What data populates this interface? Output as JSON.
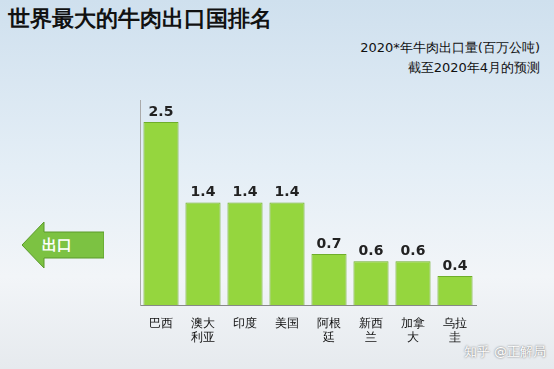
{
  "chart_data": {
    "type": "bar",
    "title": "世界最大的牛肉出口国排名",
    "subtitle": [
      "2020*年牛肉出口量(百万公吨)",
      "截至2020年4月的预测"
    ],
    "annotations": [
      "出口",
      "知乎 @正解局"
    ],
    "categories": [
      "巴西",
      "澳大利亚",
      "印度",
      "美国",
      "阿根廷",
      "新西兰",
      "加拿大",
      "乌拉圭"
    ],
    "values": [
      2.5,
      1.4,
      1.4,
      1.4,
      0.7,
      0.6,
      0.6,
      0.4
    ],
    "color": "#95d63e",
    "ylim": [
      0,
      2.8
    ],
    "grid": false,
    "data_labels": true,
    "tick_labels": "x"
  }
}
